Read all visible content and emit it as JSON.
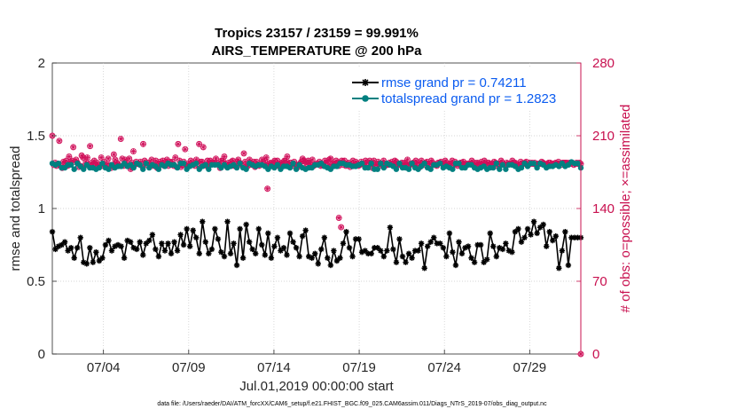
{
  "chart_data": {
    "type": "line",
    "title": "Tropics 23157 / 23159 = 99.991%",
    "subtitle": "AIRS_TEMPERATURE @ 200 hPa",
    "xlabel": "Jul.01,2019 00:00:00 start",
    "ylabel": "rmse and totalspread",
    "ylabel_right": "# of obs: o=possible; ×=assimilated",
    "x_tick_labels": [
      "07/04",
      "07/09",
      "07/14",
      "07/19",
      "07/24",
      "07/29"
    ],
    "x_tick_days": [
      4,
      9,
      14,
      19,
      24,
      29
    ],
    "xlim_days": [
      1,
      32
    ],
    "y_tick_labels": [
      "0",
      "0.5",
      "1",
      "1.5",
      "2"
    ],
    "ylim": [
      0,
      2
    ],
    "y_right_tick_labels": [
      "0",
      "70",
      "140",
      "210",
      "280"
    ],
    "ylim_right": [
      0,
      280
    ],
    "footer": "data file: /Users/raeder/DAI/ATM_forcXX/CAM6_setup/f.e21.FHIST_BGC.f09_025.CAM6assim.011/Diags_NTrS_2019-07/obs_diag_output.nc",
    "colors": {
      "rmse": "#000000",
      "spread": "#008080",
      "obs": "#d0105a",
      "legend_text": "#0b5cf0",
      "right_axis": "#c8104f"
    },
    "series": [
      {
        "name": "rmse grand pr = 0.74211",
        "axis": "left",
        "values": [
          0.84,
          0.72,
          0.74,
          0.75,
          0.77,
          0.71,
          0.73,
          0.66,
          0.73,
          0.8,
          0.63,
          0.62,
          0.73,
          0.63,
          0.7,
          0.64,
          0.66,
          0.75,
          0.78,
          0.71,
          0.74,
          0.75,
          0.74,
          0.66,
          0.78,
          0.77,
          0.73,
          0.72,
          0.77,
          0.68,
          0.76,
          0.78,
          0.82,
          0.72,
          0.67,
          0.76,
          0.71,
          0.76,
          0.69,
          0.77,
          0.71,
          0.82,
          0.75,
          0.86,
          0.74,
          0.85,
          0.8,
          0.69,
          0.91,
          0.77,
          0.69,
          0.72,
          0.86,
          0.79,
          0.7,
          0.67,
          0.91,
          0.69,
          0.76,
          0.61,
          0.86,
          0.66,
          0.89,
          0.77,
          0.72,
          0.69,
          0.86,
          0.75,
          0.68,
          0.83,
          0.66,
          0.74,
          0.8,
          0.71,
          0.73,
          0.68,
          0.83,
          0.77,
          0.73,
          0.67,
          0.81,
          0.85,
          0.67,
          0.66,
          0.69,
          0.62,
          0.72,
          0.8,
          0.66,
          0.61,
          0.71,
          0.64,
          0.66,
          0.76,
          0.84,
          0.73,
          0.67,
          0.79,
          0.79,
          0.7,
          0.71,
          0.69,
          0.69,
          0.73,
          0.73,
          0.71,
          0.67,
          0.71,
          0.87,
          0.72,
          0.63,
          0.79,
          0.67,
          0.63,
          0.69,
          0.66,
          0.71,
          0.71,
          0.76,
          0.59,
          0.74,
          0.77,
          0.8,
          0.76,
          0.76,
          0.73,
          0.67,
          0.83,
          0.7,
          0.61,
          0.77,
          0.69,
          0.73,
          0.74,
          0.66,
          0.63,
          0.75,
          0.75,
          0.63,
          0.65,
          0.83,
          0.74,
          0.67,
          0.73,
          0.72,
          0.76,
          0.71,
          0.7,
          0.84,
          0.86,
          0.77,
          0.8,
          0.86,
          0.82,
          0.91,
          0.83,
          0.87,
          0.89,
          0.74,
          0.84,
          0.78,
          0.81,
          0.59,
          0.71,
          0.84,
          0.61,
          0.8,
          0.8,
          0.8,
          0.8
        ]
      },
      {
        "name": "totalspread grand pr = 1.2823",
        "axis": "left",
        "values": [
          1.31,
          1.3,
          1.31,
          1.28,
          1.28,
          1.3,
          1.3,
          1.27,
          1.31,
          1.29,
          1.27,
          1.3,
          1.28,
          1.28,
          1.27,
          1.28,
          1.31,
          1.28,
          1.27,
          1.3,
          1.28,
          1.29,
          1.29,
          1.31,
          1.29,
          1.3,
          1.28,
          1.31,
          1.3,
          1.27,
          1.31,
          1.28,
          1.3,
          1.29,
          1.27,
          1.3,
          1.29,
          1.31,
          1.3,
          1.3,
          1.28,
          1.31,
          1.31,
          1.27,
          1.29,
          1.3,
          1.31,
          1.27,
          1.29,
          1.3,
          1.27,
          1.3,
          1.3,
          1.3,
          1.28,
          1.3,
          1.28,
          1.29,
          1.3,
          1.28,
          1.31,
          1.28,
          1.27,
          1.31,
          1.3,
          1.29,
          1.3,
          1.3,
          1.29,
          1.27,
          1.29,
          1.28,
          1.3,
          1.27,
          1.29,
          1.29,
          1.28,
          1.31,
          1.27,
          1.3,
          1.28,
          1.27,
          1.28,
          1.28,
          1.3,
          1.3,
          1.31,
          1.29,
          1.28,
          1.27,
          1.29,
          1.29,
          1.31,
          1.31,
          1.3,
          1.3,
          1.29,
          1.29,
          1.3,
          1.31,
          1.28,
          1.28,
          1.31,
          1.27,
          1.27,
          1.31,
          1.28,
          1.31,
          1.3,
          1.29,
          1.27,
          1.31,
          1.28,
          1.28,
          1.27,
          1.31,
          1.28,
          1.27,
          1.29,
          1.31,
          1.28,
          1.27,
          1.3,
          1.3,
          1.31,
          1.28,
          1.29,
          1.28,
          1.27,
          1.31,
          1.31,
          1.28,
          1.28,
          1.3,
          1.3,
          1.28,
          1.27,
          1.28,
          1.29,
          1.27,
          1.28,
          1.28,
          1.31,
          1.27,
          1.3,
          1.27,
          1.3,
          1.3,
          1.29,
          1.27,
          1.28,
          1.31,
          1.29,
          1.31,
          1.31,
          1.28,
          1.31,
          1.3,
          1.28,
          1.29,
          1.29,
          1.3,
          1.29,
          1.31,
          1.29,
          1.3,
          1.32,
          1.31,
          1.31,
          1.28
        ]
      },
      {
        "name": "# of obs",
        "axis": "right",
        "markers": "o+x",
        "values": [
          210,
          182,
          184,
          181,
          183,
          205,
          181,
          179,
          185,
          184,
          186,
          181,
          190,
          185,
          186,
          199,
          185,
          187,
          184,
          180,
          181,
          191,
          189,
          181,
          185,
          189,
          182,
          200,
          184,
          182,
          186,
          182,
          184,
          180,
          182,
          189,
          181,
          185,
          180,
          182,
          188,
          182,
          179,
          182,
          192,
          187,
          184,
          183,
          181,
          207,
          188,
          181,
          187,
          184,
          181,
          188,
          178,
          184,
          195,
          182,
          185,
          183,
          183,
          185,
          181,
          202,
          186,
          182,
          184,
          184,
          182,
          187,
          181,
          182,
          186,
          179,
          183,
          185,
          183,
          186,
          181,
          185,
          187,
          181,
          185,
          182,
          185,
          181,
          189,
          180,
          202,
          186,
          180,
          182,
          185,
          197,
          181,
          183,
          182,
          186,
          182,
          184,
          181,
          187,
          183,
          202,
          185,
          185,
          199,
          182,
          181,
          186,
          183,
          186,
          184,
          184,
          184,
          188,
          184,
          182,
          179,
          186,
          186,
          190,
          183,
          180,
          184,
          182,
          185,
          186,
          181,
          181,
          185,
          187,
          184,
          183,
          181,
          193,
          185,
          181,
          181,
          187,
          184,
          182,
          185,
          180,
          185,
          182,
          181,
          183,
          187,
          183,
          186,
          189,
          181,
          183,
          184,
          182,
          184,
          186,
          181,
          186,
          181,
          183,
          184,
          183,
          186,
          186,
          190,
          183,
          184,
          184,
          181,
          185,
          182,
          179,
          182,
          183,
          185,
          188,
          186,
          185,
          183,
          186,
          184,
          182,
          187,
          181,
          182,
          183,
          183,
          185,
          181,
          182,
          182,
          186,
          184,
          181,
          187,
          188,
          182,
          183,
          183,
          186,
          184,
          181,
          184,
          186,
          182,
          186,
          181,
          183,
          184,
          180,
          183,
          186,
          181,
          185,
          183,
          181,
          182,
          185,
          183,
          182,
          186,
          184,
          181,
          186,
          183,
          179,
          186,
          182,
          182,
          185,
          181,
          183,
          183,
          186,
          181,
          183,
          182,
          184,
          183,
          185,
          181,
          186,
          185,
          182,
          182,
          183,
          184,
          181,
          184,
          182,
          187,
          182,
          182,
          183,
          184,
          183,
          186,
          181,
          184,
          180,
          186,
          183,
          182,
          184,
          185,
          181,
          183,
          186,
          184,
          182,
          182,
          181,
          184,
          184,
          185,
          183,
          182,
          186,
          184,
          181,
          183,
          183,
          186,
          182,
          185,
          183,
          181,
          183,
          184,
          184,
          185,
          182,
          183,
          183,
          183,
          183,
          186,
          182,
          184,
          181,
          184,
          183,
          182,
          185,
          182,
          186,
          183,
          184,
          184,
          183,
          182,
          183,
          185,
          184,
          181,
          183,
          183,
          186,
          184,
          182,
          182,
          184,
          183,
          183,
          183,
          186,
          184,
          184,
          183,
          181,
          182,
          185,
          183,
          183,
          184,
          185,
          181,
          184,
          183,
          184,
          183,
          184,
          182,
          183,
          183,
          183,
          185,
          184,
          183,
          182,
          183,
          184,
          184,
          183,
          183,
          183,
          184,
          183,
          185,
          183,
          182,
          184,
          184,
          184,
          184,
          183,
          184,
          183,
          184,
          182,
          183,
          184,
          183,
          184,
          183
        ]
      }
    ],
    "obs_outliers": [
      [
        13.62,
        159
      ],
      [
        17.81,
        131
      ],
      [
        17.94,
        122
      ],
      [
        32.0,
        0
      ]
    ]
  }
}
